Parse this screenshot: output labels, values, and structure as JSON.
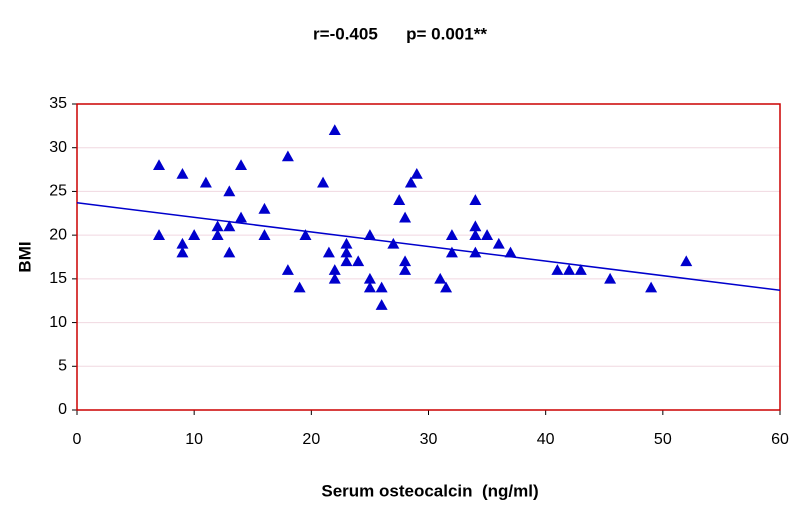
{
  "chart_data": {
    "type": "scatter",
    "title": "r=-0.405      p= 0.001**",
    "x_label": "Serum osteocalcin  (ng/ml)",
    "y_label": "BMI",
    "x": [
      7,
      7,
      9,
      9,
      9,
      10,
      11,
      12,
      12,
      13,
      13,
      13,
      14,
      14,
      16,
      16,
      18,
      18,
      19,
      19.5,
      21,
      21.5,
      22,
      22,
      22,
      23,
      23,
      23,
      24,
      25,
      25,
      25,
      26,
      26,
      27,
      27.5,
      28,
      28,
      28,
      28.5,
      29,
      31,
      31.5,
      32,
      32,
      34,
      34,
      34,
      34,
      35,
      36,
      37,
      41,
      42,
      43,
      45.5,
      49,
      52
    ],
    "values": [
      28,
      20,
      27,
      19,
      18,
      20,
      26,
      21,
      20,
      25,
      21,
      18,
      28,
      22,
      23,
      20,
      29,
      16,
      14,
      20,
      26,
      18,
      32,
      16,
      15,
      19,
      18,
      17,
      17,
      20,
      15,
      14,
      14,
      12,
      19,
      24,
      22,
      17,
      16,
      26,
      27,
      15,
      14,
      20,
      18,
      24,
      21,
      20,
      18,
      20,
      19,
      18,
      16,
      16,
      16,
      15,
      14,
      17
    ],
    "color": "#0000cc",
    "trendline": {
      "x": [
        0,
        60
      ],
      "values": [
        23.7,
        13.7
      ],
      "color": "#0000cc"
    },
    "xlim": [
      0,
      60
    ],
    "xticks": [
      0,
      10,
      20,
      30,
      40,
      50,
      60
    ],
    "ylim": [
      0,
      35
    ],
    "yticks": [
      0,
      5,
      10,
      15,
      20,
      25,
      30,
      35
    ],
    "grid": true,
    "frame_color": "#cc0000",
    "grid_color": "#f0d8e0"
  }
}
